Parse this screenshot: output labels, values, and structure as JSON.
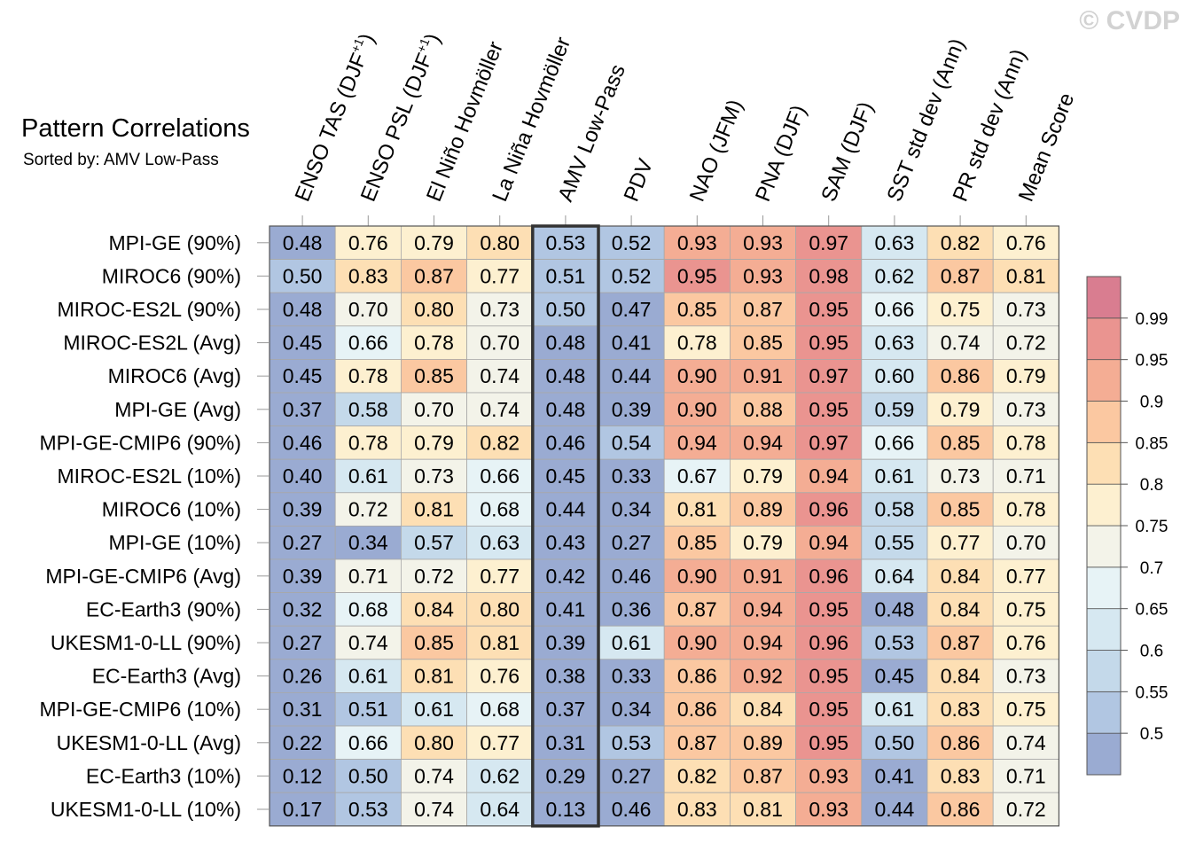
{
  "watermark": "© CVDP",
  "chart_data": {
    "type": "heatmap",
    "title": "Pattern Correlations",
    "subtitle": "Sorted by: AMV Low-Pass",
    "highlighted_column": "AMV Low-Pass",
    "columns": [
      {
        "label": "ENSO TAS (DJF",
        "sup": "+1",
        "suffix": ")"
      },
      {
        "label": "ENSO PSL (DJF",
        "sup": "+1",
        "suffix": ")"
      },
      {
        "label": "El Niño Hovmöller",
        "sup": "",
        "suffix": ""
      },
      {
        "label": "La Niña Hovmöller",
        "sup": "",
        "suffix": ""
      },
      {
        "label": "AMV Low-Pass",
        "sup": "",
        "suffix": ""
      },
      {
        "label": "PDV",
        "sup": "",
        "suffix": ""
      },
      {
        "label": "NAO (JFM)",
        "sup": "",
        "suffix": ""
      },
      {
        "label": "PNA (DJF)",
        "sup": "",
        "suffix": ""
      },
      {
        "label": "SAM (DJF)",
        "sup": "",
        "suffix": ""
      },
      {
        "label": "SST std dev (Ann)",
        "sup": "",
        "suffix": ""
      },
      {
        "label": "PR std dev (Ann)",
        "sup": "",
        "suffix": ""
      },
      {
        "label": "Mean Score",
        "sup": "",
        "suffix": ""
      }
    ],
    "rows": [
      "MPI-GE (90%)",
      "MIROC6 (90%)",
      "MIROC-ES2L (90%)",
      "MIROC-ES2L (Avg)",
      "MIROC6 (Avg)",
      "MPI-GE (Avg)",
      "MPI-GE-CMIP6 (90%)",
      "MIROC-ES2L (10%)",
      "MIROC6 (10%)",
      "MPI-GE (10%)",
      "MPI-GE-CMIP6 (Avg)",
      "EC-Earth3 (90%)",
      "UKESM1-0-LL (90%)",
      "EC-Earth3 (Avg)",
      "MPI-GE-CMIP6 (10%)",
      "UKESM1-0-LL (Avg)",
      "EC-Earth3 (10%)",
      "UKESM1-0-LL (10%)"
    ],
    "values": [
      [
        "0.48",
        "0.76",
        "0.79",
        "0.80",
        "0.53",
        "0.52",
        "0.93",
        "0.93",
        "0.97",
        "0.63",
        "0.82",
        "0.76"
      ],
      [
        "0.50",
        "0.83",
        "0.87",
        "0.77",
        "0.51",
        "0.52",
        "0.95",
        "0.93",
        "0.98",
        "0.62",
        "0.87",
        "0.81"
      ],
      [
        "0.48",
        "0.70",
        "0.80",
        "0.73",
        "0.50",
        "0.47",
        "0.85",
        "0.87",
        "0.95",
        "0.66",
        "0.75",
        "0.73"
      ],
      [
        "0.45",
        "0.66",
        "0.78",
        "0.70",
        "0.48",
        "0.41",
        "0.78",
        "0.85",
        "0.95",
        "0.63",
        "0.74",
        "0.72"
      ],
      [
        "0.45",
        "0.78",
        "0.85",
        "0.74",
        "0.48",
        "0.44",
        "0.90",
        "0.91",
        "0.97",
        "0.60",
        "0.86",
        "0.79"
      ],
      [
        "0.37",
        "0.58",
        "0.70",
        "0.74",
        "0.48",
        "0.39",
        "0.90",
        "0.88",
        "0.95",
        "0.59",
        "0.79",
        "0.73"
      ],
      [
        "0.46",
        "0.78",
        "0.79",
        "0.82",
        "0.46",
        "0.54",
        "0.94",
        "0.94",
        "0.97",
        "0.66",
        "0.85",
        "0.78"
      ],
      [
        "0.40",
        "0.61",
        "0.73",
        "0.66",
        "0.45",
        "0.33",
        "0.67",
        "0.79",
        "0.94",
        "0.61",
        "0.73",
        "0.71"
      ],
      [
        "0.39",
        "0.72",
        "0.81",
        "0.68",
        "0.44",
        "0.34",
        "0.81",
        "0.89",
        "0.96",
        "0.58",
        "0.85",
        "0.78"
      ],
      [
        "0.27",
        "0.34",
        "0.57",
        "0.63",
        "0.43",
        "0.27",
        "0.85",
        "0.79",
        "0.94",
        "0.55",
        "0.77",
        "0.70"
      ],
      [
        "0.39",
        "0.71",
        "0.72",
        "0.77",
        "0.42",
        "0.46",
        "0.90",
        "0.91",
        "0.96",
        "0.64",
        "0.84",
        "0.77"
      ],
      [
        "0.32",
        "0.68",
        "0.84",
        "0.80",
        "0.41",
        "0.36",
        "0.87",
        "0.94",
        "0.95",
        "0.48",
        "0.84",
        "0.75"
      ],
      [
        "0.27",
        "0.74",
        "0.85",
        "0.81",
        "0.39",
        "0.61",
        "0.90",
        "0.94",
        "0.96",
        "0.53",
        "0.87",
        "0.76"
      ],
      [
        "0.26",
        "0.61",
        "0.81",
        "0.76",
        "0.38",
        "0.33",
        "0.86",
        "0.92",
        "0.95",
        "0.45",
        "0.84",
        "0.73"
      ],
      [
        "0.31",
        "0.51",
        "0.61",
        "0.68",
        "0.37",
        "0.34",
        "0.86",
        "0.84",
        "0.95",
        "0.61",
        "0.83",
        "0.75"
      ],
      [
        "0.22",
        "0.66",
        "0.80",
        "0.77",
        "0.31",
        "0.53",
        "0.87",
        "0.89",
        "0.95",
        "0.50",
        "0.86",
        "0.74"
      ],
      [
        "0.12",
        "0.50",
        "0.74",
        "0.62",
        "0.29",
        "0.27",
        "0.82",
        "0.87",
        "0.93",
        "0.41",
        "0.83",
        "0.71"
      ],
      [
        "0.17",
        "0.53",
        "0.74",
        "0.64",
        "0.13",
        "0.46",
        "0.83",
        "0.81",
        "0.93",
        "0.44",
        "0.86",
        "0.72"
      ]
    ],
    "colorbar": {
      "labels": [
        "0.5",
        "0.55",
        "0.6",
        "0.65",
        "0.7",
        "0.75",
        "0.8",
        "0.85",
        "0.9",
        "0.95",
        "0.99"
      ],
      "thresholds": [
        0.5,
        0.55,
        0.6,
        0.65,
        0.7,
        0.75,
        0.8,
        0.85,
        0.9,
        0.95,
        0.99
      ],
      "colors": [
        "#9aabd2",
        "#b1c6e2",
        "#c4d9ea",
        "#d6e8f1",
        "#e7f3f6",
        "#f3f3e9",
        "#fdf0d0",
        "#fddfb4",
        "#fbc8a1",
        "#f4ad94",
        "#ea9490",
        "#d97d90"
      ]
    }
  }
}
